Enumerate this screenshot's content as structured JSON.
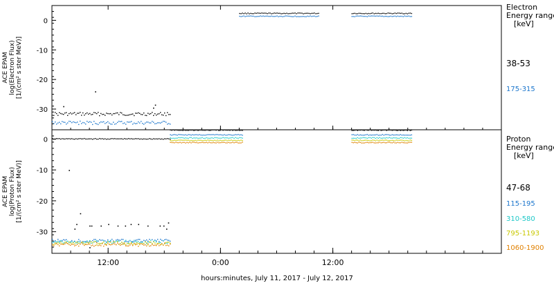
{
  "chart_data": [
    {
      "type": "scatter",
      "panel": "electron",
      "ylabel_lines": [
        "ACE EPAM",
        "log(Electron Flux)",
        "[1/(cm² s ster MeV)]"
      ],
      "ylim": [
        -37,
        5
      ],
      "yticks": [
        0,
        -10,
        -20,
        -30
      ],
      "legend_title_lines": [
        "Electron",
        "Energy ranges",
        "[keV]"
      ],
      "series": [
        {
          "name": "38-53",
          "color": "#000000",
          "segments": [
            {
              "x": [
                6.0,
                18.6
              ],
              "y": -31.5
            },
            {
              "x": [
                26.0,
                34.5
              ],
              "y": 2.5
            },
            {
              "x": [
                38.0,
                44.5
              ],
              "y": 2.5
            }
          ],
          "outliers": [
            [
              10.6,
              -24.0
            ],
            [
              7.2,
              -29.0
            ],
            [
              16.8,
              -29.5
            ],
            [
              17.0,
              -28.5
            ]
          ]
        },
        {
          "name": "175-315",
          "color": "#1a75cc",
          "segments": [
            {
              "x": [
                6.0,
                18.6
              ],
              "y": -34.5
            },
            {
              "x": [
                26.0,
                34.5
              ],
              "y": 1.5
            },
            {
              "x": [
                38.0,
                44.5
              ],
              "y": 1.5
            }
          ],
          "outliers": []
        }
      ]
    },
    {
      "type": "scatter",
      "panel": "proton",
      "ylabel_lines": [
        "ACE EPAM",
        "log(Proton Flux)",
        "[1/(cm² s ster MeV)]"
      ],
      "ylim": [
        -37,
        3
      ],
      "yticks": [
        0,
        -10,
        -20,
        -30
      ],
      "legend_title_lines": [
        "Proton",
        "Energy ranges",
        "[keV]"
      ],
      "series": [
        {
          "name": "47-68",
          "color": "#000000",
          "segments": [
            {
              "x": [
                6.0,
                18.6
              ],
              "y": 0.2
            },
            {
              "x": [
                18.6,
                26.4
              ],
              "y": 3.0
            },
            {
              "x": [
                38.0,
                44.5
              ],
              "y": 3.0
            }
          ],
          "outliers": [
            [
              7.8,
              -10.0
            ],
            [
              9.0,
              -24.0
            ],
            [
              8.4,
              -29.0
            ],
            [
              8.6,
              -27.5
            ],
            [
              10.0,
              -28.0
            ],
            [
              10.2,
              -28.0
            ],
            [
              11.2,
              -28.0
            ],
            [
              12.0,
              -27.5
            ],
            [
              13.0,
              -28.0
            ],
            [
              13.8,
              -28.0
            ],
            [
              14.4,
              -27.5
            ],
            [
              15.2,
              -27.5
            ],
            [
              16.2,
              -28.0
            ],
            [
              17.5,
              -28.0
            ],
            [
              17.9,
              -28.0
            ],
            [
              18.4,
              -27.0
            ],
            [
              18.2,
              -29.0
            ],
            [
              10.0,
              -35.0
            ]
          ]
        },
        {
          "name": "115-195",
          "color": "#1a75cc",
          "segments": [
            {
              "x": [
                6.0,
                18.6
              ],
              "y": -32.8
            },
            {
              "x": [
                18.6,
                26.4
              ],
              "y": 1.5
            },
            {
              "x": [
                38.0,
                44.5
              ],
              "y": 1.5
            }
          ],
          "outliers": []
        },
        {
          "name": "310-580",
          "color": "#1ec8c8",
          "segments": [
            {
              "x": [
                6.0,
                18.6
              ],
              "y": -33.2
            },
            {
              "x": [
                18.6,
                26.4
              ],
              "y": 0.5
            },
            {
              "x": [
                38.0,
                44.5
              ],
              "y": 0.5
            }
          ],
          "outliers": []
        },
        {
          "name": "795-1193",
          "color": "#c8c800",
          "segments": [
            {
              "x": [
                6.0,
                18.6
              ],
              "y": -33.6
            },
            {
              "x": [
                18.6,
                26.4
              ],
              "y": -0.3
            },
            {
              "x": [
                38.0,
                44.5
              ],
              "y": -0.3
            }
          ],
          "outliers": []
        },
        {
          "name": "1060-1900",
          "color": "#e08000",
          "segments": [
            {
              "x": [
                6.0,
                18.6
              ],
              "y": -34.0
            },
            {
              "x": [
                18.6,
                26.4
              ],
              "y": -1.0
            },
            {
              "x": [
                38.0,
                44.5
              ],
              "y": -1.0
            }
          ],
          "outliers": []
        }
      ]
    }
  ],
  "shared": {
    "xlabel": "hours:minutes, July 11, 2017 - July 12, 2017",
    "xlim": [
      6.0,
      54.0
    ],
    "xticks": [
      {
        "x": 12,
        "label": "12:00"
      },
      {
        "x": 24,
        "label": "0:00"
      },
      {
        "x": 36,
        "label": "12:00"
      }
    ]
  }
}
